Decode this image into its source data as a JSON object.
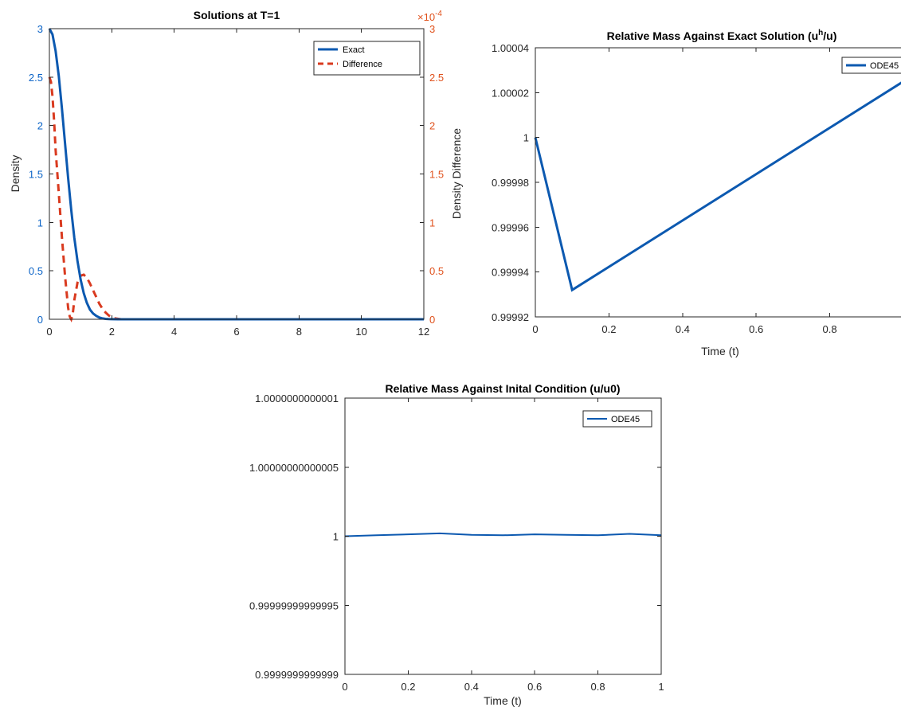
{
  "colors": {
    "exact": "#0c59b0",
    "difference": "#d93a1f",
    "ode45": "#0c59b0",
    "axis": "#262626",
    "left_axis": "#0a63c7",
    "right_axis": "#e0521d"
  },
  "chart_data": [
    {
      "type": "line",
      "title": "Solutions at T=1",
      "xlabel": "",
      "ylabel": "Density",
      "ylabel_right": "Density Difference",
      "right_exponent_label": "×10",
      "right_exponent_power": "-4",
      "xlim": [
        0,
        12
      ],
      "ylim": [
        0,
        3
      ],
      "ylim_right": [
        0,
        3
      ],
      "x_ticks": [
        "0",
        "2",
        "4",
        "6",
        "8",
        "10",
        "12"
      ],
      "y_ticks": [
        "0",
        "0.5",
        "1",
        "1.5",
        "2",
        "2.5",
        "3"
      ],
      "y_right_ticks": [
        "0",
        "0.5",
        "1",
        "1.5",
        "2",
        "2.5",
        "3"
      ],
      "legend_position": "top-right",
      "series": [
        {
          "name": "Exact",
          "axis": "left",
          "style": "solid",
          "x": [
            0,
            0.1,
            0.2,
            0.3,
            0.4,
            0.5,
            0.6,
            0.7,
            0.8,
            0.9,
            1.0,
            1.1,
            1.2,
            1.3,
            1.4,
            1.5,
            1.6,
            1.7,
            1.8,
            1.9,
            2.0,
            2.2,
            2.5,
            3,
            4,
            6,
            8,
            10,
            12
          ],
          "y": [
            3.0,
            2.94,
            2.77,
            2.51,
            2.18,
            1.82,
            1.46,
            1.13,
            0.84,
            0.6,
            0.41,
            0.27,
            0.17,
            0.1,
            0.06,
            0.035,
            0.018,
            0.009,
            0.004,
            0.002,
            0.001,
            0.0,
            0.0,
            0.0,
            0.0,
            0.0,
            0.0,
            0.0,
            0.0
          ]
        },
        {
          "name": "Difference",
          "axis": "right",
          "style": "dashed",
          "x": [
            0,
            0.05,
            0.1,
            0.15,
            0.2,
            0.3,
            0.4,
            0.5,
            0.6,
            0.65,
            0.7,
            0.75,
            0.8,
            0.9,
            1.0,
            1.1,
            1.2,
            1.3,
            1.4,
            1.5,
            1.6,
            1.7,
            1.8,
            1.9,
            2.0,
            2.1,
            2.3,
            2.5,
            3,
            4,
            6,
            8,
            10,
            12
          ],
          "y": [
            2.5,
            2.45,
            2.3,
            2.05,
            1.75,
            1.3,
            0.85,
            0.45,
            0.12,
            0.03,
            0.0,
            0.06,
            0.2,
            0.38,
            0.45,
            0.46,
            0.43,
            0.37,
            0.3,
            0.23,
            0.16,
            0.11,
            0.07,
            0.04,
            0.02,
            0.01,
            0.0,
            0.0,
            0.0,
            0.0,
            0.0,
            0.0,
            0.0,
            0.0
          ]
        }
      ]
    },
    {
      "type": "line",
      "title": "Relative Mass Against Exact Solution (u",
      "title_sup": "h",
      "title_end": "/u)",
      "xlabel": "Time (t)",
      "ylabel": "",
      "xlim": [
        0,
        1
      ],
      "ylim": [
        0.99992,
        1.00004
      ],
      "x_ticks": [
        "0",
        "0.2",
        "0.4",
        "0.6",
        "0.8"
      ],
      "y_ticks": [
        "0.99992",
        "0.99994",
        "0.99996",
        "0.99998",
        "1",
        "1.00002",
        "1.00004"
      ],
      "legend_position": "top-right",
      "series": [
        {
          "name": "ODE45",
          "style": "solid",
          "x": [
            0,
            0.1,
            1.0
          ],
          "y": [
            1.0,
            0.999932,
            1.000025
          ]
        }
      ]
    },
    {
      "type": "line",
      "title": "Relative Mass Against Inital Condition (u/u0)",
      "xlabel": "Time (t)",
      "ylabel": "",
      "xlim": [
        0,
        1
      ],
      "y_ticks": [
        "0.9999999999999",
        "0.99999999999995",
        "1",
        "1.00000000000005",
        "1.0000000000001"
      ],
      "y_offset_range": [
        -1e-13,
        1e-13
      ],
      "x_ticks": [
        "0",
        "0.2",
        "0.4",
        "0.6",
        "0.8",
        "1"
      ],
      "legend_position": "top-right",
      "series": [
        {
          "name": "ODE45",
          "style": "solid",
          "x": [
            0,
            0.1,
            0.2,
            0.3,
            0.4,
            0.5,
            0.6,
            0.7,
            0.8,
            0.9,
            1.0
          ],
          "y_offset": [
            0,
            2e-16,
            4e-16,
            6e-16,
            3e-16,
            2e-16,
            4e-16,
            3e-16,
            2e-16,
            5e-16,
            2e-16
          ]
        }
      ]
    }
  ]
}
